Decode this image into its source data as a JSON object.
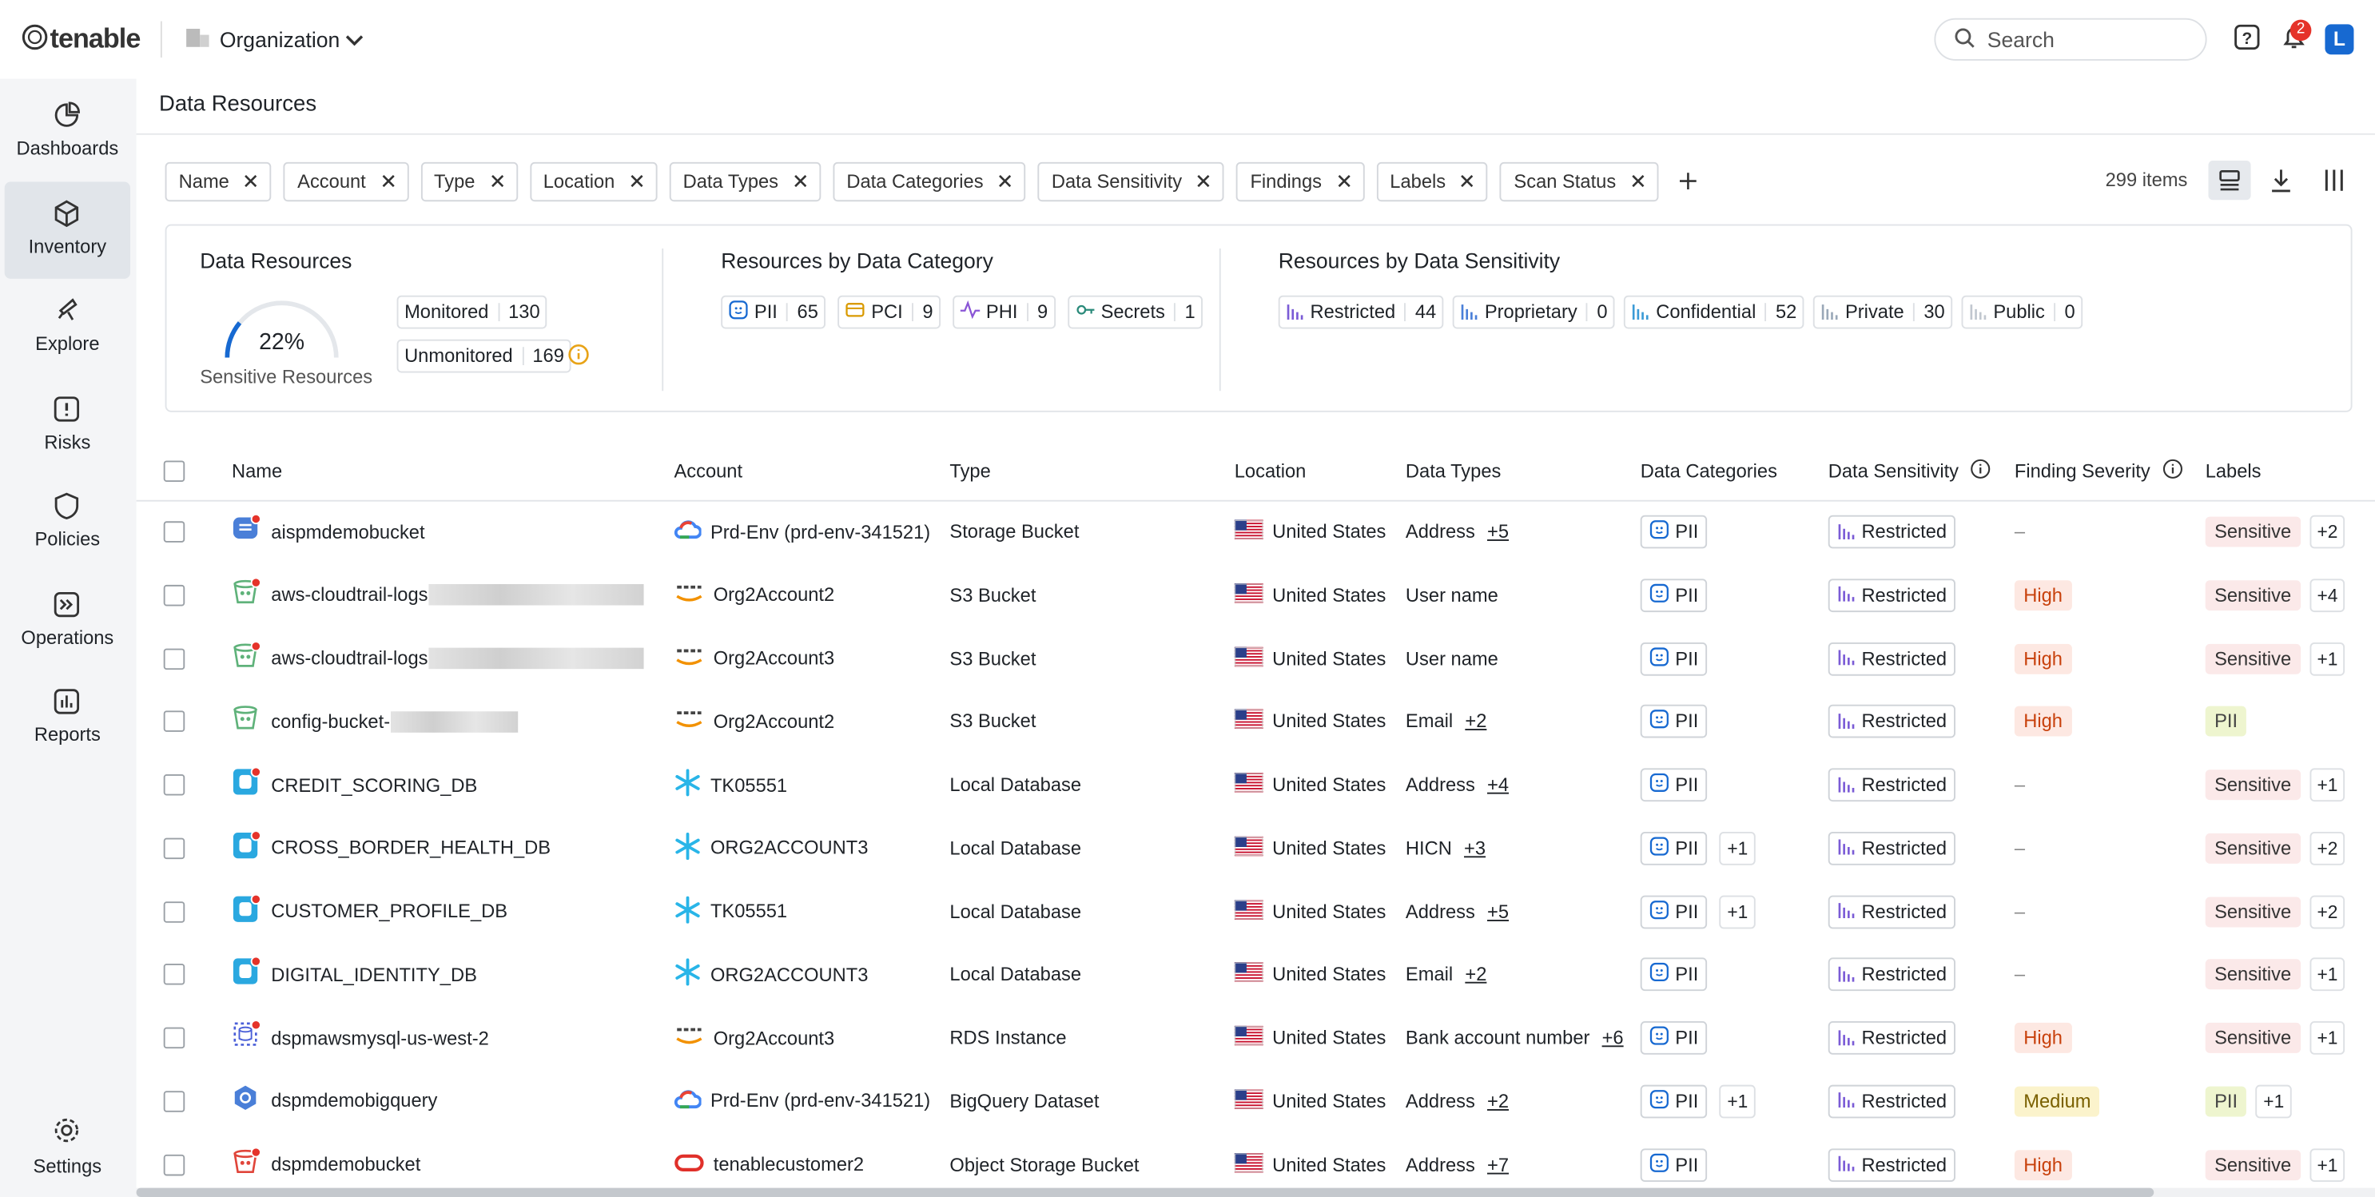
{
  "header": {
    "brand": "tenable",
    "org": "Organization",
    "search": "Search",
    "notifications": "2",
    "user": "L"
  },
  "sidebar": [
    "Dashboards",
    "Inventory",
    "Explore",
    "Risks",
    "Policies",
    "Operations",
    "Reports"
  ],
  "settings": "Settings",
  "page_title": "Data Resources",
  "filters": [
    "Name",
    "Account",
    "Type",
    "Location",
    "Data Types",
    "Data Categories",
    "Data Sensitivity",
    "Findings",
    "Labels",
    "Scan Status"
  ],
  "item_count": "299 items",
  "summary": {
    "resources": {
      "title": "Data Resources",
      "percent": "22%",
      "caption": "Sensitive Resources",
      "monitored": {
        "label": "Monitored",
        "count": 130
      },
      "unmonitored": {
        "label": "Unmonitored",
        "count": 169
      }
    },
    "category": {
      "title": "Resources by Data Category",
      "items": [
        {
          "label": "PII",
          "count": 65
        },
        {
          "label": "PCI",
          "count": 9
        },
        {
          "label": "PHI",
          "count": 9
        },
        {
          "label": "Secrets",
          "count": 1
        }
      ]
    },
    "sensitivity": {
      "title": "Resources by Data Sensitivity",
      "items": [
        {
          "label": "Restricted",
          "count": 44
        },
        {
          "label": "Proprietary",
          "count": 0
        },
        {
          "label": "Confidential",
          "count": 52
        },
        {
          "label": "Private",
          "count": 30
        },
        {
          "label": "Public",
          "count": 0
        }
      ]
    }
  },
  "table": {
    "columns": [
      "Name",
      "Account",
      "Type",
      "Location",
      "Data Types",
      "Data Categories",
      "Data Sensitivity",
      "Finding Severity",
      "Labels"
    ],
    "rows": [
      {
        "name": "aispmdemobucket",
        "account": "Prd-Env (prd-env-341521)",
        "type": "Storage Bucket",
        "location": "United States",
        "data_type": "Address",
        "data_type_more": "+5",
        "category": "PII",
        "sensitivity": "Restricted",
        "severity": "–",
        "label": "Sensitive",
        "label_more": "+2"
      },
      {
        "name": "aws-cloudtrail-logs",
        "account": "Org2Account2",
        "type": "S3 Bucket",
        "location": "United States",
        "data_type": "User name",
        "category": "PII",
        "sensitivity": "Restricted",
        "severity": "High",
        "label": "Sensitive",
        "label_more": "+4"
      },
      {
        "name": "aws-cloudtrail-logs",
        "account": "Org2Account3",
        "type": "S3 Bucket",
        "location": "United States",
        "data_type": "User name",
        "category": "PII",
        "sensitivity": "Restricted",
        "severity": "High",
        "label": "Sensitive",
        "label_more": "+1"
      },
      {
        "name": "config-bucket-",
        "account": "Org2Account2",
        "type": "S3 Bucket",
        "location": "United States",
        "data_type": "Email",
        "data_type_more": "+2",
        "category": "PII",
        "sensitivity": "Restricted",
        "severity": "High",
        "label": "PII"
      },
      {
        "name": "CREDIT_SCORING_DB",
        "account": "TK05551",
        "type": "Local Database",
        "location": "United States",
        "data_type": "Address",
        "data_type_more": "+4",
        "category": "PII",
        "sensitivity": "Restricted",
        "severity": "–",
        "label": "Sensitive",
        "label_more": "+1"
      },
      {
        "name": "CROSS_BORDER_HEALTH_DB",
        "account": "ORG2ACCOUNT3",
        "type": "Local Database",
        "location": "United States",
        "data_type": "HICN",
        "data_type_more": "+3",
        "category": "PII",
        "category_more": "+1",
        "sensitivity": "Restricted",
        "severity": "–",
        "label": "Sensitive",
        "label_more": "+2"
      },
      {
        "name": "CUSTOMER_PROFILE_DB",
        "account": "TK05551",
        "type": "Local Database",
        "location": "United States",
        "data_type": "Address",
        "data_type_more": "+5",
        "category": "PII",
        "category_more": "+1",
        "sensitivity": "Restricted",
        "severity": "–",
        "label": "Sensitive",
        "label_more": "+2"
      },
      {
        "name": "DIGITAL_IDENTITY_DB",
        "account": "ORG2ACCOUNT3",
        "type": "Local Database",
        "location": "United States",
        "data_type": "Email",
        "data_type_more": "+2",
        "category": "PII",
        "sensitivity": "Restricted",
        "severity": "–",
        "label": "Sensitive",
        "label_more": "+1"
      },
      {
        "name": "dspmawsmysql-us-west-2",
        "account": "Org2Account3",
        "type": "RDS Instance",
        "location": "United States",
        "data_type": "Bank account number",
        "data_type_more": "+6",
        "category": "PII",
        "sensitivity": "Restricted",
        "severity": "High",
        "label": "Sensitive",
        "label_more": "+1"
      },
      {
        "name": "dspmdemobigquery",
        "account": "Prd-Env (prd-env-341521)",
        "type": "BigQuery Dataset",
        "location": "United States",
        "data_type": "Address",
        "data_type_more": "+2",
        "category": "PII",
        "category_more": "+1",
        "sensitivity": "Restricted",
        "severity": "Medium",
        "label": "PII",
        "label_more": "+1"
      },
      {
        "name": "dspmdemobucket",
        "account": "tenablecustomer2",
        "type": "Object Storage Bucket",
        "location": "United States",
        "data_type": "Address",
        "data_type_more": "+7",
        "category": "PII",
        "sensitivity": "Restricted",
        "severity": "High",
        "label": "Sensitive",
        "label_more": "+1"
      }
    ]
  }
}
